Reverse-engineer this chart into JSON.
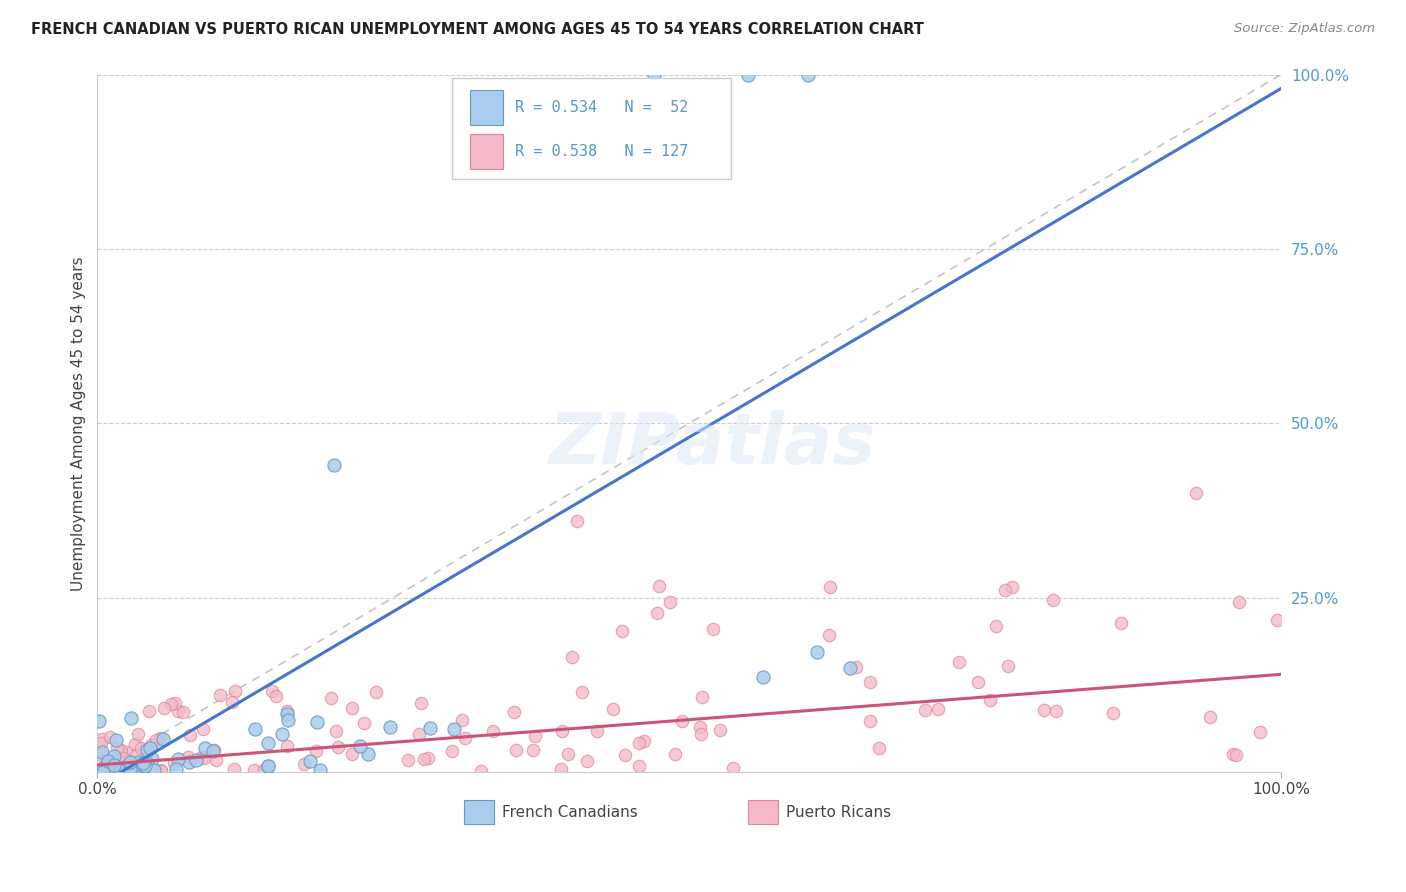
{
  "title": "FRENCH CANADIAN VS PUERTO RICAN UNEMPLOYMENT AMONG AGES 45 TO 54 YEARS CORRELATION CHART",
  "source": "Source: ZipAtlas.com",
  "ylabel": "Unemployment Among Ages 45 to 54 years",
  "background_color": "#ffffff",
  "grid_color": "#cccccc",
  "watermark_text": "ZIPatlas",
  "fc_R": 0.534,
  "fc_N": 52,
  "pr_R": 0.538,
  "pr_N": 127,
  "fc_line_color": "#4477cc",
  "pr_line_color": "#cc5577",
  "fc_scatter_color": "#aaccee",
  "pr_scatter_color": "#f5b8c8",
  "fc_scatter_edge": "#6699bb",
  "pr_scatter_edge": "#dd8899",
  "diag_line_color": "#bbbbbb",
  "fc_legend_color": "#aaccee",
  "pr_legend_color": "#f5b8c8",
  "ytick_color": "#5599cc",
  "ytick_labels": [
    "100.0%",
    "75.0%",
    "50.0%",
    "25.0%"
  ],
  "ytick_vals": [
    1.0,
    0.75,
    0.5,
    0.25
  ],
  "xtick_labels": [
    "0.0%",
    "100.0%"
  ],
  "xtick_vals": [
    0.0,
    1.0
  ]
}
